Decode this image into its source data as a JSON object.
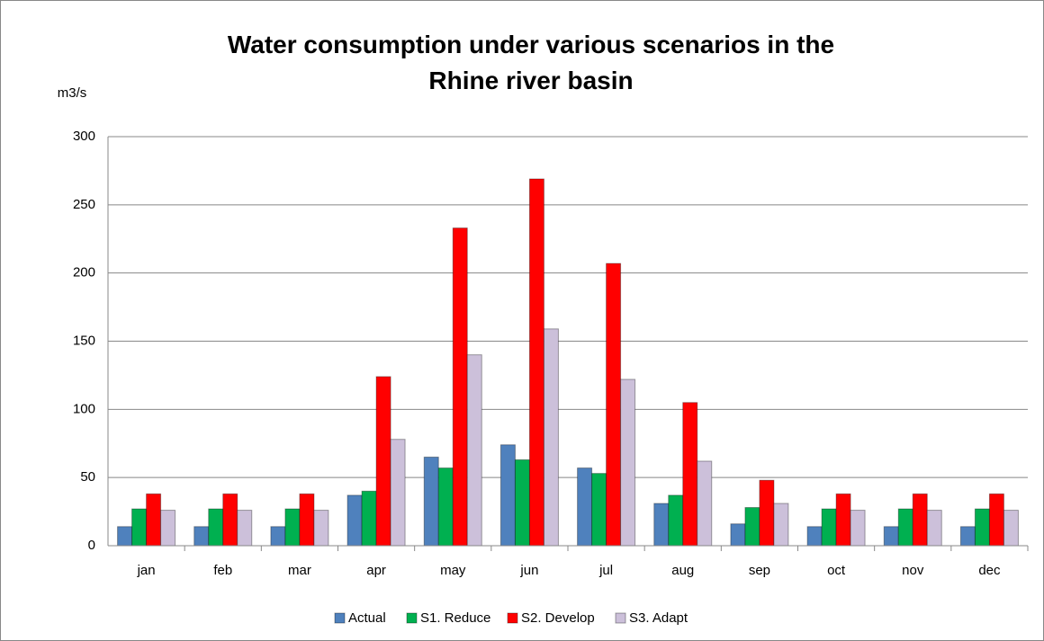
{
  "chart_data": {
    "type": "bar",
    "title": "Water consumption under various scenarios in the Rhine river basin",
    "y_label": "m3/s",
    "categories": [
      "jan",
      "feb",
      "mar",
      "apr",
      "may",
      "jun",
      "jul",
      "aug",
      "sep",
      "oct",
      "nov",
      "dec"
    ],
    "series": [
      {
        "name": "Actual",
        "color": "#4f81bd",
        "values": [
          14,
          14,
          14,
          37,
          65,
          74,
          57,
          31,
          16,
          14,
          14,
          14
        ]
      },
      {
        "name": "S1. Reduce",
        "color": "#00b050",
        "values": [
          27,
          27,
          27,
          40,
          57,
          63,
          53,
          37,
          28,
          27,
          27,
          27
        ]
      },
      {
        "name": "S2. Develop",
        "color": "#ff0000",
        "values": [
          38,
          38,
          38,
          124,
          233,
          269,
          207,
          105,
          48,
          38,
          38,
          38
        ]
      },
      {
        "name": "S3. Adapt",
        "color": "#ccc0da",
        "values": [
          26,
          26,
          26,
          78,
          140,
          159,
          122,
          62,
          31,
          26,
          26,
          26
        ]
      }
    ],
    "ylim": [
      0,
      300
    ],
    "yticks": [
      0,
      50,
      100,
      150,
      200,
      250,
      300
    ],
    "grid": true,
    "legend": "bottom"
  }
}
